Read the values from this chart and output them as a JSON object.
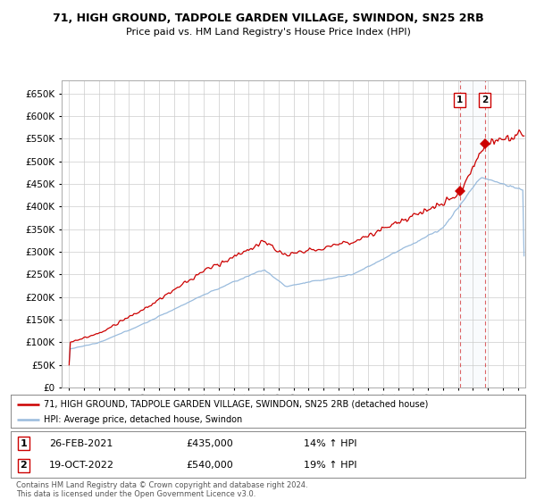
{
  "title": "71, HIGH GROUND, TADPOLE GARDEN VILLAGE, SWINDON, SN25 2RB",
  "subtitle": "Price paid vs. HM Land Registry's House Price Index (HPI)",
  "background_color": "#ffffff",
  "plot_bg_color": "#ffffff",
  "grid_color": "#cccccc",
  "hpi_color": "#99bbdd",
  "price_color": "#cc0000",
  "sale1_date_num": 2021.12,
  "sale1_price": 435000,
  "sale1_label": "1",
  "sale1_date_str": "26-FEB-2021",
  "sale1_pct": "14%",
  "sale2_date_num": 2022.79,
  "sale2_price": 540000,
  "sale2_label": "2",
  "sale2_date_str": "19-OCT-2022",
  "sale2_pct": "19%",
  "legend_line1": "71, HIGH GROUND, TADPOLE GARDEN VILLAGE, SWINDON, SN25 2RB (detached house)",
  "legend_line2": "HPI: Average price, detached house, Swindon",
  "footnote": "Contains HM Land Registry data © Crown copyright and database right 2024.\nThis data is licensed under the Open Government Licence v3.0.",
  "ylim_min": 0,
  "ylim_max": 680000,
  "yticks": [
    0,
    50000,
    100000,
    150000,
    200000,
    250000,
    300000,
    350000,
    400000,
    450000,
    500000,
    550000,
    600000,
    650000
  ],
  "xlim_min": 1994.5,
  "xlim_max": 2025.5
}
